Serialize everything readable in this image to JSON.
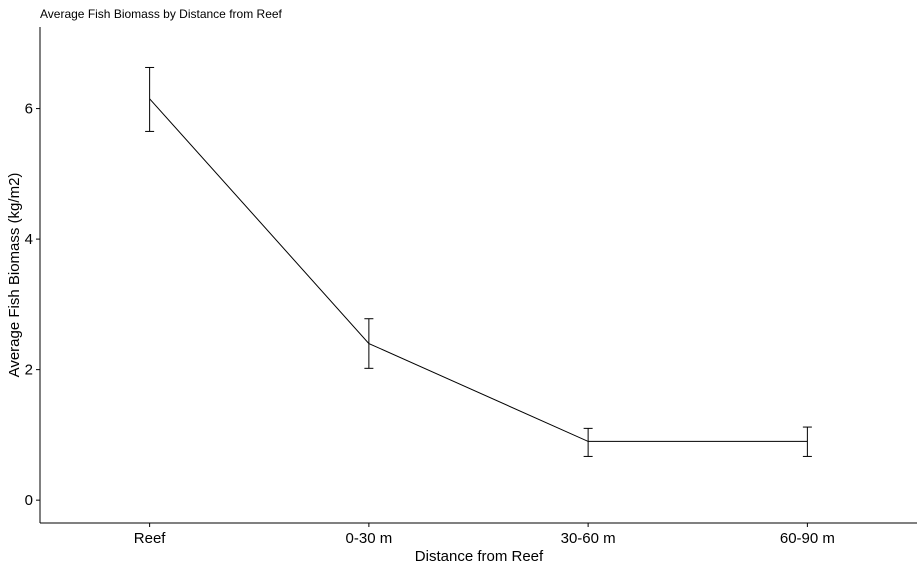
{
  "chart_data": {
    "type": "line",
    "title": "Average Fish Biomass by Distance from Reef",
    "xlabel": "Distance from Reef",
    "ylabel": "Average Fish Biomass (kg/m2)",
    "categories": [
      "Reef",
      "0-30 m",
      "30-60 m",
      "60-90 m"
    ],
    "series": [
      {
        "values": [
          6.15,
          2.4,
          0.9,
          0.9
        ],
        "error_low": [
          5.65,
          2.02,
          0.67,
          0.67
        ],
        "error_high": [
          6.63,
          2.78,
          1.1,
          1.12
        ]
      }
    ],
    "ylim": [
      -0.35,
      7.25
    ],
    "yticks": [
      0,
      2,
      4,
      6
    ],
    "grid": false,
    "line_color": "#000000"
  }
}
